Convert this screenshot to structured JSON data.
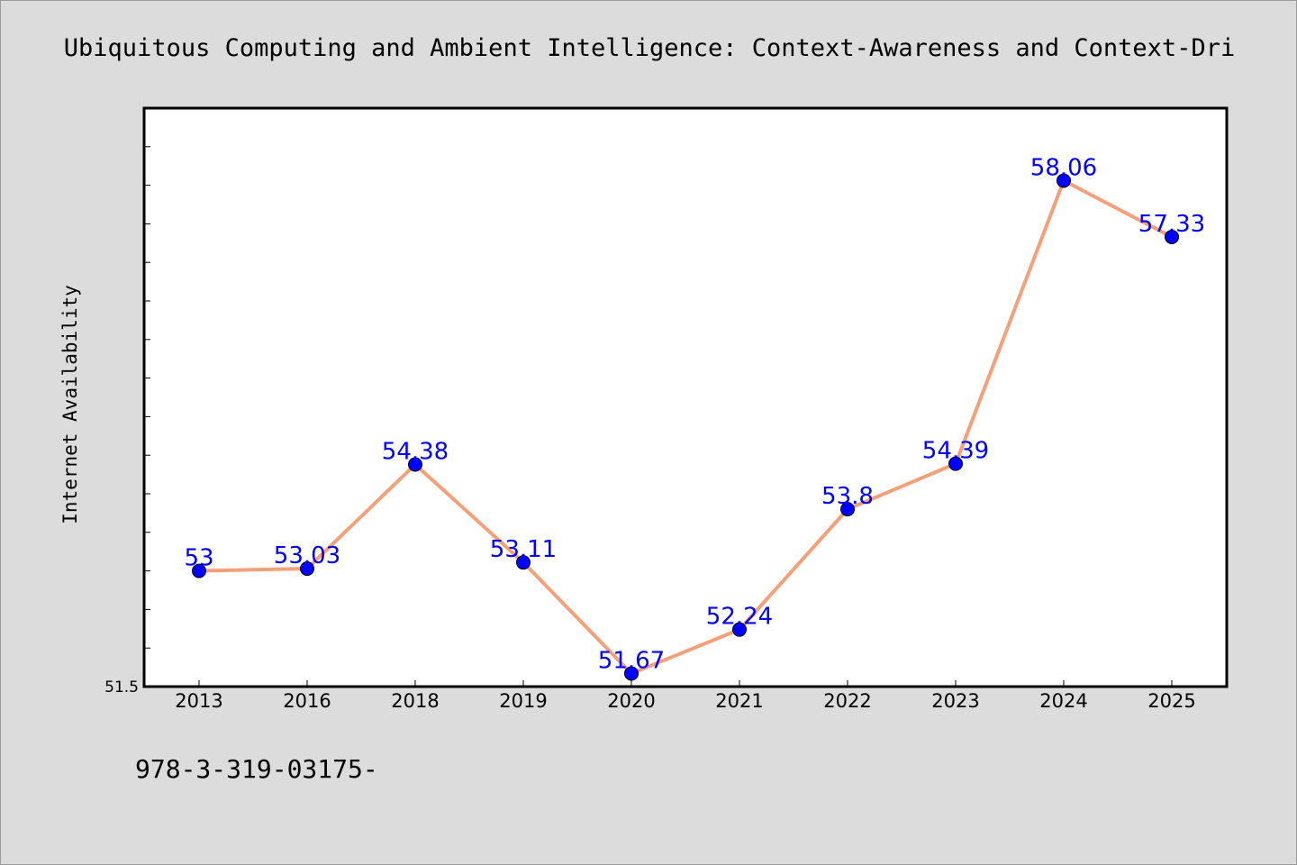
{
  "chart_data": {
    "type": "line",
    "title": "Ubiquitous Computing and Ambient Intelligence: Context-Awareness and Context-Dri",
    "xlabel": "",
    "ylabel": "Internet Availability",
    "categories": [
      "2013",
      "2016",
      "2018",
      "2019",
      "2020",
      "2021",
      "2022",
      "2023",
      "2024",
      "2025"
    ],
    "values": [
      53,
      53.03,
      54.38,
      53.11,
      51.67,
      52.24,
      53.8,
      54.39,
      58.06,
      57.33
    ],
    "data_labels": [
      "53",
      "53.03",
      "54.38",
      "53.11",
      "51.67",
      "52.24",
      "53.8",
      "54.39",
      "58.06",
      "57.33"
    ],
    "ylim": [
      51.5,
      59.0
    ],
    "y_tick_labels": [
      {
        "value": 51.5,
        "label": "51.5"
      }
    ],
    "y_minor_tick_step": 0.5,
    "grid": false,
    "legend": "none",
    "colors": {
      "line": "#f4a07a",
      "marker": "#0000ff",
      "data_label": "#0000ff",
      "plot_background": "#ffffff",
      "figure_background": "#dcdcdc"
    }
  },
  "footnote": "978-3-319-03175-"
}
